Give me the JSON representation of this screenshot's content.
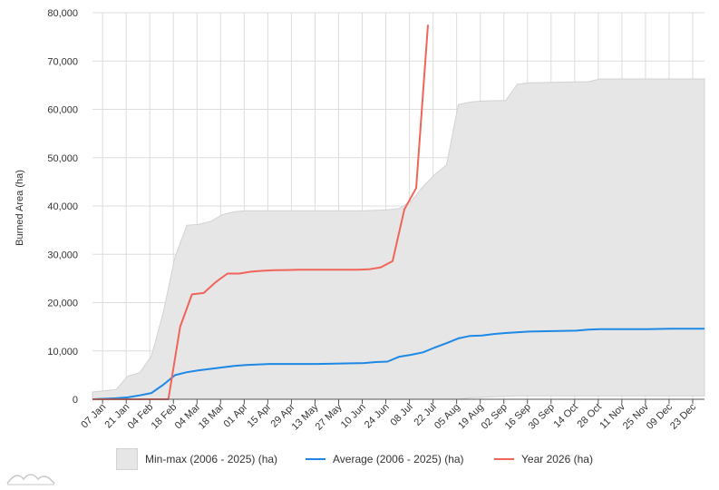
{
  "colors": {
    "range_fill": "#e6e6e6",
    "range_stroke": "#d2d2d2",
    "average": "#1e88e5",
    "year": "#f0645a",
    "grid": "#dddddd",
    "axis": "#555555"
  },
  "legend": {
    "range": "Min-max (2006 - 2025) (ha)",
    "average": "Average (2006 - 2025) (ha)",
    "year": "Year 2026 (ha)"
  },
  "logo_icon": "mountain-logo-icon",
  "chart_data": {
    "type": "area",
    "ylabel": "Burned Area (ha)",
    "xlabel": "",
    "ylim": [
      0,
      80000
    ],
    "y_ticks": [
      "0",
      "10,000",
      "20,000",
      "30,000",
      "40,000",
      "50,000",
      "60,000",
      "70,000",
      "80,000"
    ],
    "x_ticks": [
      "07 Jan",
      "21 Jan",
      "04 Feb",
      "18 Feb",
      "04 Mar",
      "18 Mar",
      "01 Apr",
      "15 Apr",
      "29 Apr",
      "13 May",
      "27 May",
      "10 Jun",
      "24 Jun",
      "08 Jul",
      "22 Jul",
      "05 Aug",
      "19 Aug",
      "02 Sep",
      "16 Sep",
      "30 Sep",
      "14 Oct",
      "28 Oct",
      "11 Nov",
      "25 Nov",
      "09 Dec",
      "23 Dec"
    ],
    "grid": true,
    "legend_position": "bottom",
    "series": [
      {
        "name": "Min-max (2006 - 2025) (ha)",
        "kind": "range",
        "x": [
          "01 Jan",
          "15 Jan",
          "22 Jan",
          "29 Jan",
          "05 Feb",
          "12 Feb",
          "19 Feb",
          "26 Feb",
          "05 Mar",
          "12 Mar",
          "19 Mar",
          "26 Mar",
          "02 Apr",
          "16 Apr",
          "30 Apr",
          "14 May",
          "28 May",
          "11 Jun",
          "25 Jun",
          "02 Jul",
          "09 Jul",
          "16 Jul",
          "23 Jul",
          "30 Jul",
          "06 Aug",
          "13 Aug",
          "20 Aug",
          "27 Aug",
          "03 Sep",
          "10 Sep",
          "17 Sep",
          "01 Oct",
          "15 Oct",
          "22 Oct",
          "29 Oct",
          "12 Nov",
          "26 Nov",
          "10 Dec",
          "24 Dec",
          "30 Dec"
        ],
        "high": [
          1500,
          2000,
          4800,
          5500,
          9000,
          18000,
          29500,
          36000,
          36200,
          36800,
          38200,
          38800,
          39000,
          39000,
          39000,
          39000,
          39000,
          39000,
          39200,
          39500,
          41000,
          44000,
          46500,
          48500,
          61000,
          61500,
          61700,
          61800,
          61800,
          65200,
          65500,
          65600,
          65700,
          65700,
          66300,
          66300,
          66300,
          66300,
          66300,
          66300
        ],
        "low": [
          0,
          0,
          0,
          0,
          0,
          0,
          0,
          0,
          0,
          0,
          0,
          0,
          0,
          0,
          0,
          0,
          0,
          0,
          0,
          0,
          0,
          0,
          0,
          0,
          0,
          300,
          400,
          500,
          600,
          700,
          700,
          700,
          700,
          700,
          700,
          700,
          700,
          700,
          700,
          700
        ]
      },
      {
        "name": "Average (2006 - 2025) (ha)",
        "kind": "line",
        "x": [
          "01 Jan",
          "15 Jan",
          "22 Jan",
          "29 Jan",
          "05 Feb",
          "12 Feb",
          "19 Feb",
          "26 Feb",
          "05 Mar",
          "12 Mar",
          "19 Mar",
          "26 Mar",
          "02 Apr",
          "16 Apr",
          "30 Apr",
          "14 May",
          "28 May",
          "11 Jun",
          "18 Jun",
          "25 Jun",
          "02 Jul",
          "09 Jul",
          "16 Jul",
          "23 Jul",
          "30 Jul",
          "06 Aug",
          "13 Aug",
          "20 Aug",
          "27 Aug",
          "03 Sep",
          "17 Sep",
          "01 Oct",
          "15 Oct",
          "22 Oct",
          "29 Oct",
          "12 Nov",
          "26 Nov",
          "10 Dec",
          "24 Dec",
          "30 Dec"
        ],
        "values": [
          0,
          200,
          400,
          800,
          1300,
          3000,
          5000,
          5600,
          6000,
          6300,
          6600,
          6900,
          7100,
          7300,
          7300,
          7300,
          7400,
          7500,
          7700,
          7800,
          8800,
          9200,
          9700,
          10700,
          11600,
          12600,
          13100,
          13200,
          13500,
          13700,
          14000,
          14100,
          14200,
          14400,
          14500,
          14500,
          14500,
          14600,
          14600,
          14600
        ]
      },
      {
        "name": "Year 2026 (ha)",
        "kind": "line",
        "x": [
          "01 Jan",
          "14 Jan",
          "28 Jan",
          "11 Feb",
          "15 Feb",
          "22 Feb",
          "01 Mar",
          "08 Mar",
          "15 Mar",
          "22 Mar",
          "29 Mar",
          "05 Apr",
          "12 Apr",
          "19 Apr",
          "26 Apr",
          "03 May",
          "10 May",
          "17 May",
          "24 May",
          "31 May",
          "07 Jun",
          "14 Jun",
          "21 Jun",
          "28 Jun",
          "05 Jul",
          "12 Jul",
          "19 Jul"
        ],
        "values": [
          0,
          0,
          0,
          0,
          0,
          15000,
          21700,
          22000,
          24200,
          26000,
          26000,
          26400,
          26600,
          26700,
          26750,
          26800,
          26800,
          26800,
          26800,
          26800,
          26800,
          26900,
          27300,
          28600,
          39300,
          43700,
          77500
        ]
      }
    ]
  }
}
